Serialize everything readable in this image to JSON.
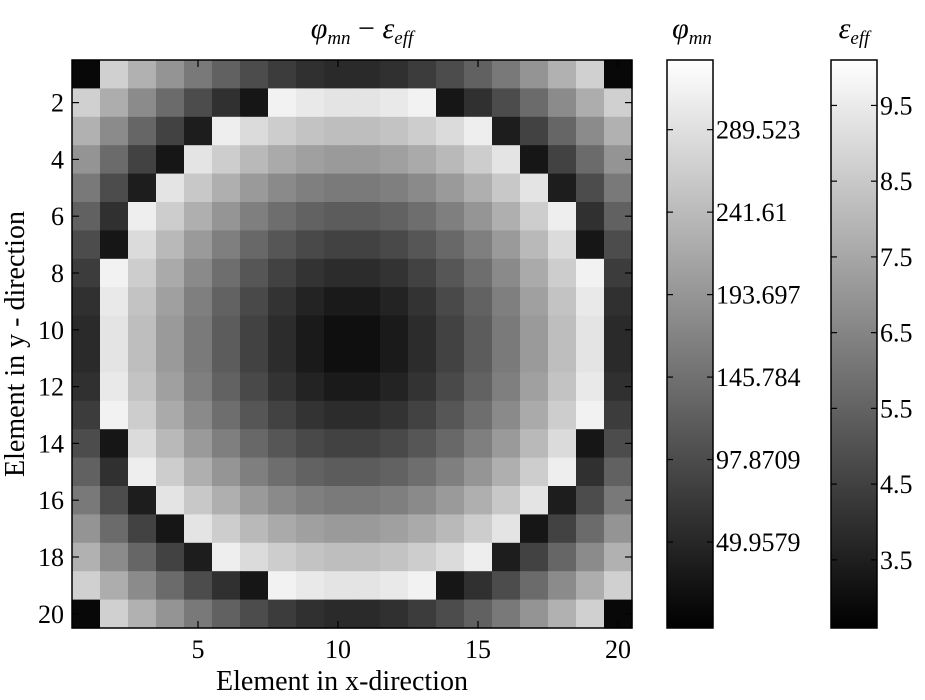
{
  "chart_data": [
    {
      "type": "heatmap",
      "title": {
        "phi": "φ",
        "phi_sub": "mn",
        "op": " − ",
        "eps": "ε",
        "eps_sub": "eff"
      },
      "xlabel": "Element in x-direction",
      "ylabel": "Element in y - direction",
      "x_range": [
        1,
        20
      ],
      "y_range": [
        1,
        20
      ],
      "y_reversed": true,
      "x_ticks": [
        {
          "value": 5,
          "label": "5"
        },
        {
          "value": 10,
          "label": "10"
        },
        {
          "value": 15,
          "label": "15"
        },
        {
          "value": 20,
          "label": "20"
        }
      ],
      "y_ticks": [
        {
          "value": 2,
          "label": "2"
        },
        {
          "value": 4,
          "label": "4"
        },
        {
          "value": 6,
          "label": "6"
        },
        {
          "value": 8,
          "label": "8"
        },
        {
          "value": 10,
          "label": "10"
        },
        {
          "value": 12,
          "label": "12"
        },
        {
          "value": 14,
          "label": "14"
        },
        {
          "value": 16,
          "label": "16"
        },
        {
          "value": 18,
          "label": "18"
        },
        {
          "value": 20,
          "label": "20"
        }
      ],
      "colormap": "gray",
      "circle_center": [
        10.5,
        10.5
      ],
      "circle_radius": 9.1,
      "inside_cells": "phi_mn rises from ~0 at the center to its maximum at the circle edge (white)",
      "outside_cells": "eps_eff falls from ~10 at the circle edge (black) to ~3 at the corners, with black corner cells"
    },
    {
      "type": "colorbar",
      "label_sym": "φ",
      "label_sub": "mn",
      "range": [
        0,
        330
      ],
      "direction": "black at bottom, white at top",
      "ticks": [
        {
          "value": 289.523,
          "label": "289.523"
        },
        {
          "value": 241.61,
          "label": "241.61"
        },
        {
          "value": 193.697,
          "label": "193.697"
        },
        {
          "value": 145.784,
          "label": "145.784"
        },
        {
          "value": 97.8709,
          "label": "97.8709"
        },
        {
          "value": 49.9579,
          "label": "49.9579"
        }
      ]
    },
    {
      "type": "colorbar",
      "label_sym": "ε",
      "label_sub": "eff",
      "range": [
        2.6,
        10.1
      ],
      "direction": "white at top, black at bottom",
      "ticks": [
        {
          "value": 3.5,
          "label": "3.5"
        },
        {
          "value": 4.5,
          "label": "4.5"
        },
        {
          "value": 5.5,
          "label": "5.5"
        },
        {
          "value": 6.5,
          "label": "6.5"
        },
        {
          "value": 7.5,
          "label": "7.5"
        },
        {
          "value": 8.5,
          "label": "8.5"
        },
        {
          "value": 9.5,
          "label": "9.5"
        }
      ]
    }
  ]
}
